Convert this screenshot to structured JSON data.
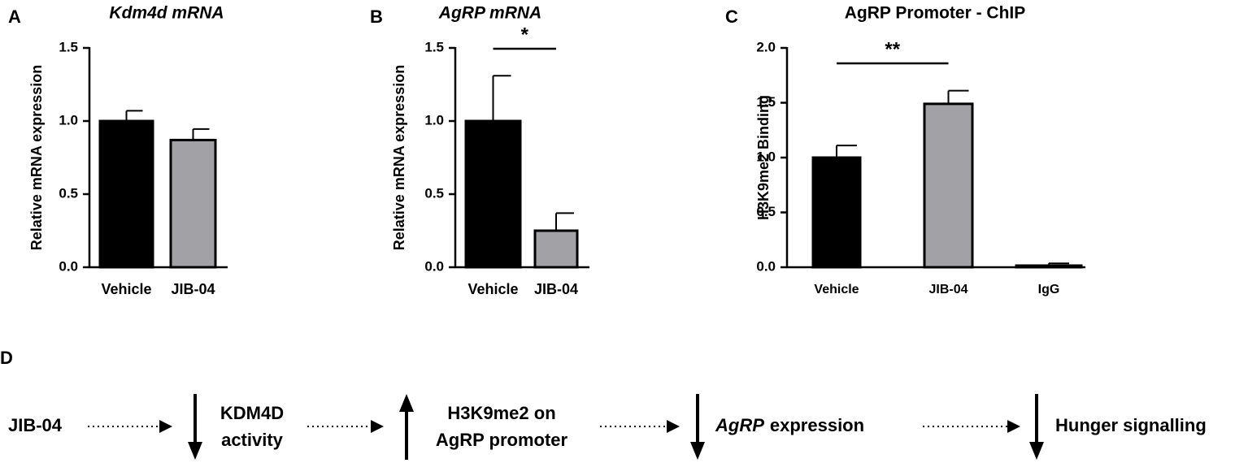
{
  "chart_data": [
    {
      "type": "bar",
      "panel_label": "A",
      "title": "Kdm4d mRNA",
      "title_italic": true,
      "y_label": "Relative mRNA expression",
      "categories": [
        "Vehicle",
        "JIB-04"
      ],
      "values": [
        1.0,
        0.87
      ],
      "errors": [
        0.07,
        0.075
      ],
      "colors": [
        "#000000",
        "#a2a2a6"
      ],
      "ylim": [
        0,
        1.5
      ],
      "yticks": [
        {
          "value": 0,
          "label": "0.0"
        },
        0.5,
        {
          "value": 1,
          "label": "1.0"
        },
        1.5
      ]
    },
    {
      "type": "bar",
      "panel_label": "B",
      "title": "AgRP mRNA",
      "title_italic": true,
      "y_label": "Relative mRNA expression",
      "categories": [
        "Vehicle",
        "JIB-04"
      ],
      "values": [
        1.0,
        0.25
      ],
      "errors": [
        0.31,
        0.12
      ],
      "colors": [
        "#000000",
        "#a2a2a6"
      ],
      "ylim": [
        0,
        1.5
      ],
      "yticks": [
        {
          "value": 0,
          "label": "0.0"
        },
        0.5,
        {
          "value": 1,
          "label": "1.0"
        },
        1.5
      ],
      "significance": "*"
    },
    {
      "type": "bar",
      "panel_label": "C",
      "title": "AgRP Promoter - ChIP",
      "title_italic": false,
      "y_label": "H3K9me2 Binding",
      "categories": [
        "Vehicle",
        "JIB-04",
        "IgG"
      ],
      "values": [
        1.0,
        1.49,
        0.015
      ],
      "errors": [
        0.11,
        0.12,
        0.02
      ],
      "colors": [
        "#000000",
        "#a2a2a6",
        "#ffffff"
      ],
      "ylim": [
        0,
        2
      ],
      "yticks": [
        {
          "value": 0,
          "label": "0.0"
        },
        0.5,
        {
          "value": 1,
          "label": "1.0"
        },
        1.5,
        {
          "value": 2,
          "label": "2.0"
        }
      ],
      "significance": "**"
    }
  ],
  "diagram": {
    "panel_label": "D",
    "start": "JIB-04",
    "nodes": [
      {
        "arrow": "down",
        "lines": [
          "KDM4D",
          "activity"
        ]
      },
      {
        "arrow": "up",
        "lines": [
          "H3K9me2 on",
          "AgRP promoter"
        ]
      },
      {
        "arrow": "down",
        "emphasis": "AgRP",
        "text": "expression"
      },
      {
        "arrow": "down",
        "text": "Hunger signalling"
      }
    ]
  }
}
